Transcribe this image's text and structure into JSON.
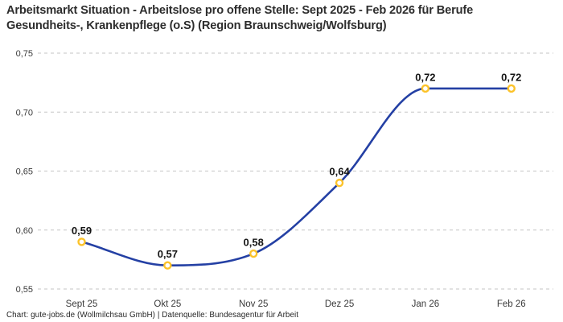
{
  "header": {
    "title": "Arbeitsmarkt Situation - Arbeitslose pro offene Stelle: Sept 2025 - Feb 2026 für Berufe Gesundheits-, Krankenpflege (o.S) (Region Braunschweig/Wolfsburg)"
  },
  "footer": {
    "text": "Chart: gute-jobs.de (Wollmilchsau GmbH) | Datenquelle: Bundesagentur für Arbeit"
  },
  "chart_data": {
    "type": "line",
    "title": "Arbeitsmarkt Situation - Arbeitslose pro offene Stelle: Sept 2025 - Feb 2026 für Berufe Gesundheits-, Krankenpflege (o.S) (Region Braunschweig/Wolfsburg)",
    "categories": [
      "Sept 25",
      "Okt 25",
      "Nov 25",
      "Dez 25",
      "Jan 26",
      "Feb 26"
    ],
    "series": [
      {
        "name": "Arbeitslose pro offene Stelle",
        "values": [
          0.59,
          0.57,
          0.58,
          0.64,
          0.72,
          0.72
        ],
        "point_labels": [
          "0,59",
          "0,57",
          "0,58",
          "0,64",
          "0,72",
          "0,72"
        ]
      }
    ],
    "xlabel": "",
    "ylabel": "",
    "ylim": [
      0.55,
      0.75
    ],
    "y_ticks": [
      {
        "value": 0.75,
        "label": "0,75"
      },
      {
        "value": 0.7,
        "label": "0,70"
      },
      {
        "value": 0.65,
        "label": "0,65"
      },
      {
        "value": 0.6,
        "label": "0,60"
      },
      {
        "value": 0.55,
        "label": "0,55"
      }
    ],
    "grid": "horizontal-dashed",
    "legend": "none",
    "curve": "monotone",
    "colors": {
      "line": "#2440a4",
      "marker_ring": "#fcc32a",
      "marker_fill": "#ffffff",
      "grid": "#c6c6c6",
      "tick_label": "#3a3a3a",
      "point_label": "#141414"
    }
  }
}
